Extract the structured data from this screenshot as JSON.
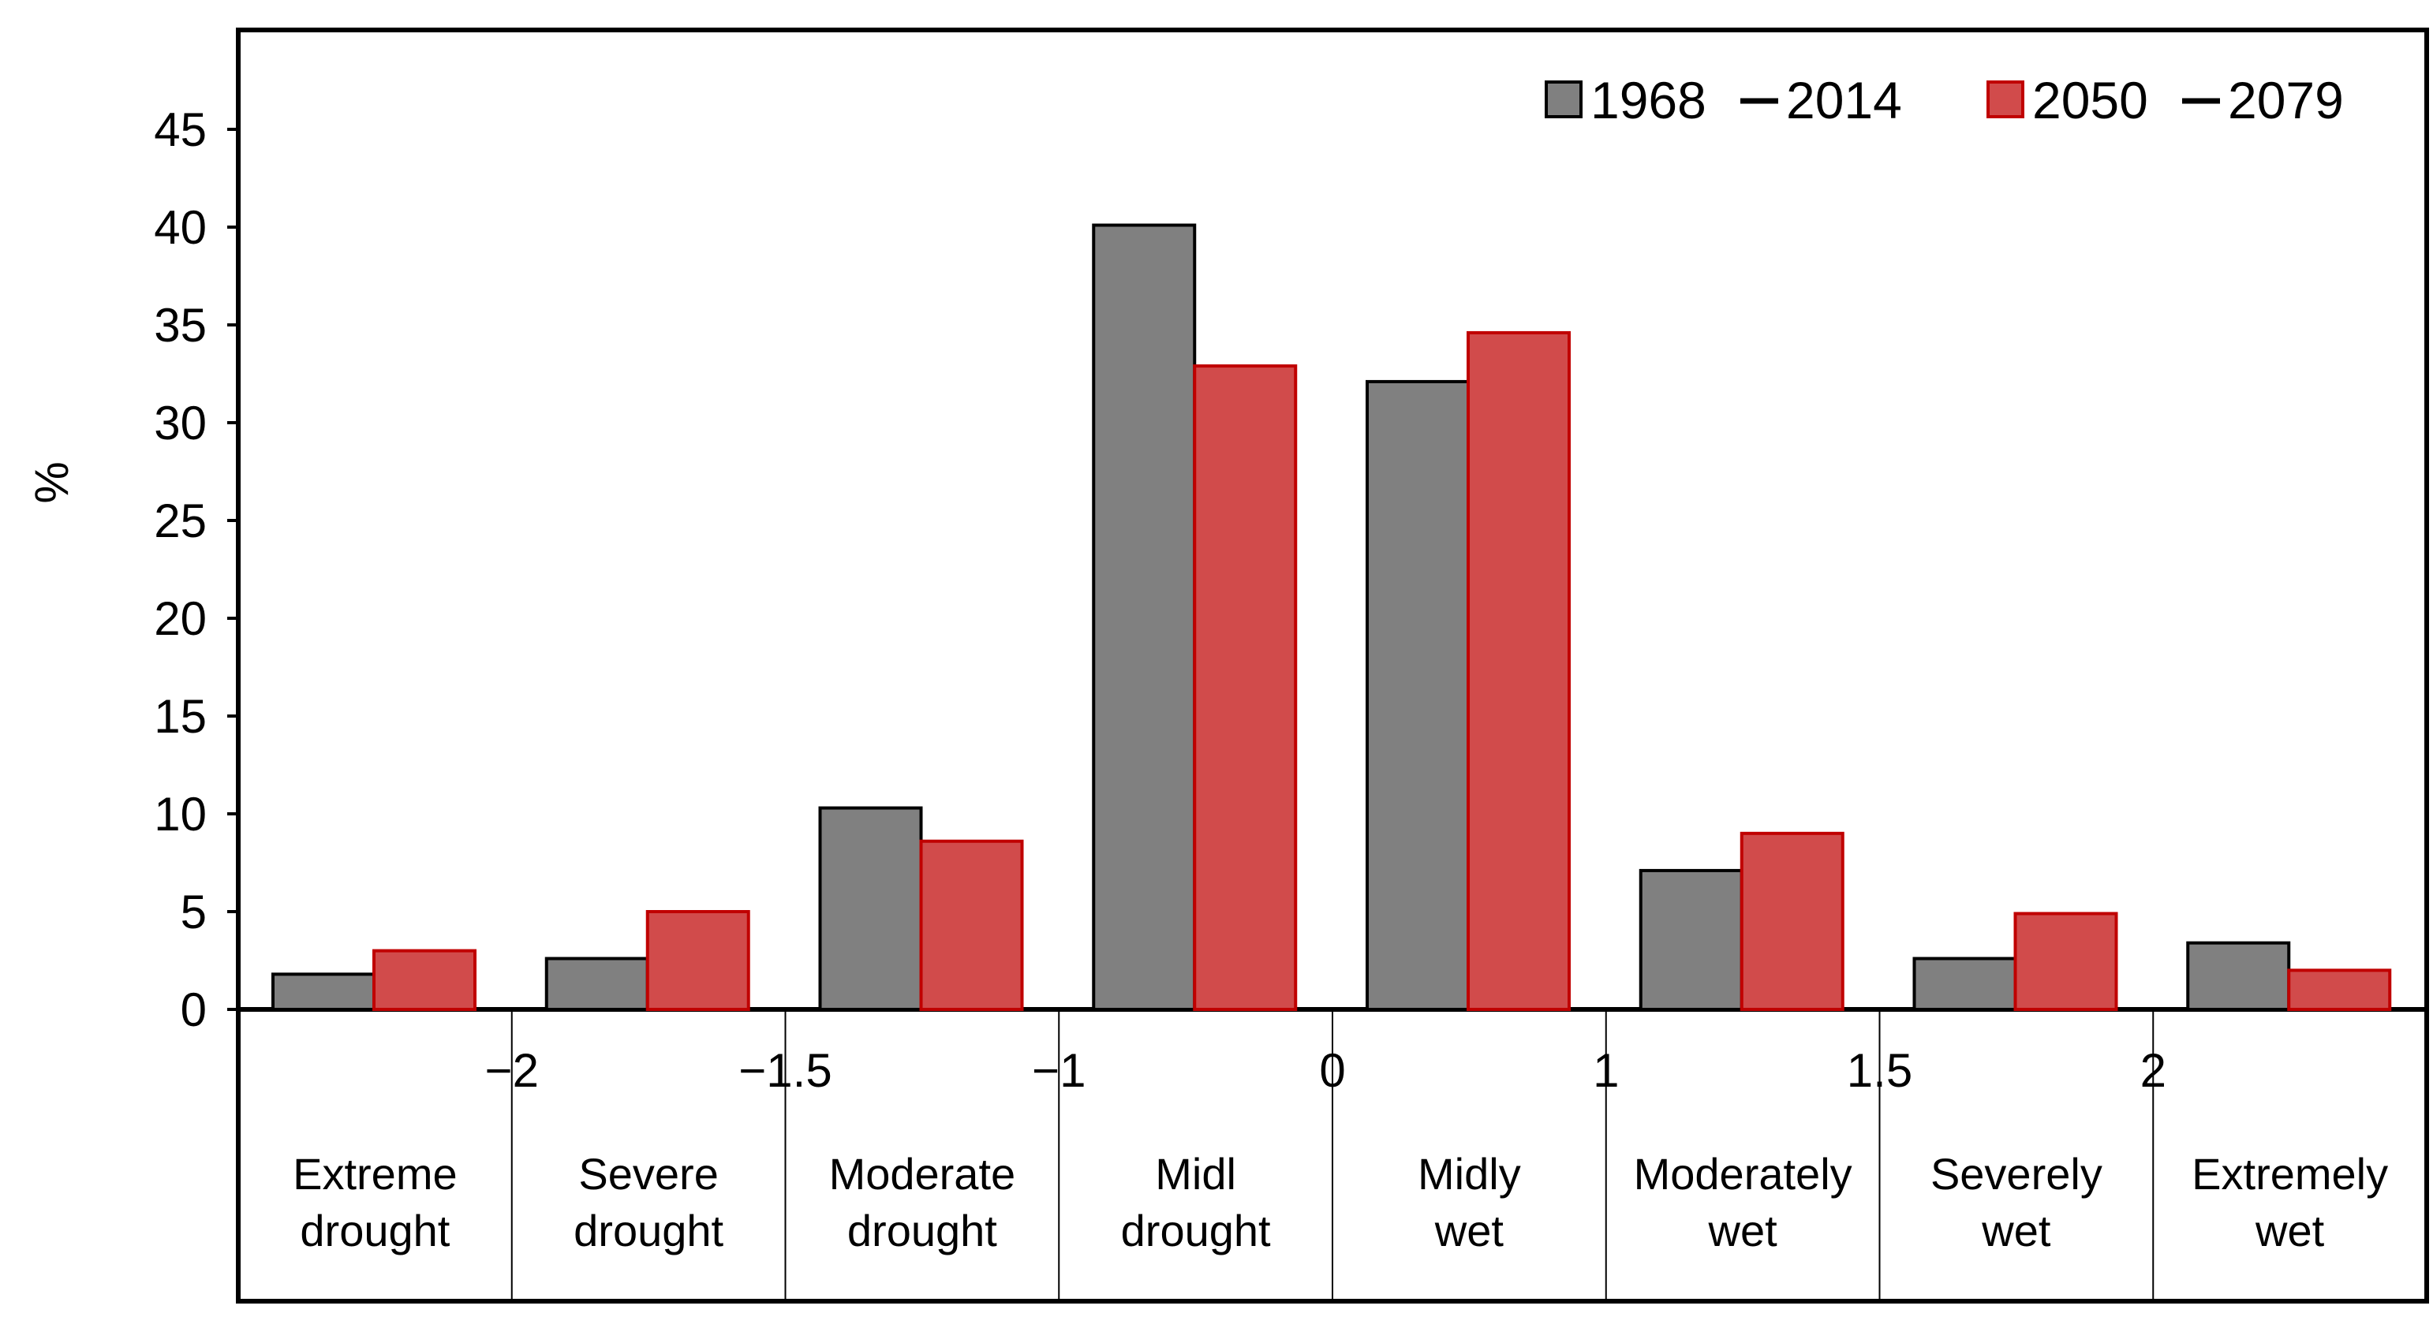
{
  "chart_data": {
    "type": "bar",
    "title": "",
    "ylabel": "%",
    "xlabel": "",
    "ylim": [
      0,
      50
    ],
    "yticks": [
      "0",
      "5",
      "10",
      "15",
      "20",
      "25",
      "30",
      "35",
      "40",
      "45"
    ],
    "boundary_ticks": [
      "−2",
      "−1.5",
      "−1",
      "0",
      "1",
      "1.5",
      "2"
    ],
    "categories": [
      [
        "Extreme",
        "drought"
      ],
      [
        "Severe",
        "drought"
      ],
      [
        "Moderate",
        "drought"
      ],
      [
        "Midl",
        "drought"
      ],
      [
        "Midly",
        "wet"
      ],
      [
        "Moderately",
        "wet"
      ],
      [
        "Severely",
        "wet"
      ],
      [
        "Extremely",
        "wet"
      ]
    ],
    "series": [
      {
        "name_start": "1968",
        "name_end": "2014",
        "color": "#808080",
        "values": [
          1.8,
          2.6,
          10.3,
          40.1,
          32.1,
          7.1,
          2.6,
          3.4
        ]
      },
      {
        "name_start": "2050",
        "name_end": "2079",
        "color": "#d14b4b",
        "values": [
          3.0,
          5.0,
          8.6,
          32.9,
          34.6,
          9.0,
          4.9,
          2.0
        ]
      }
    ],
    "legend_position": "top-right",
    "grid": false
  }
}
